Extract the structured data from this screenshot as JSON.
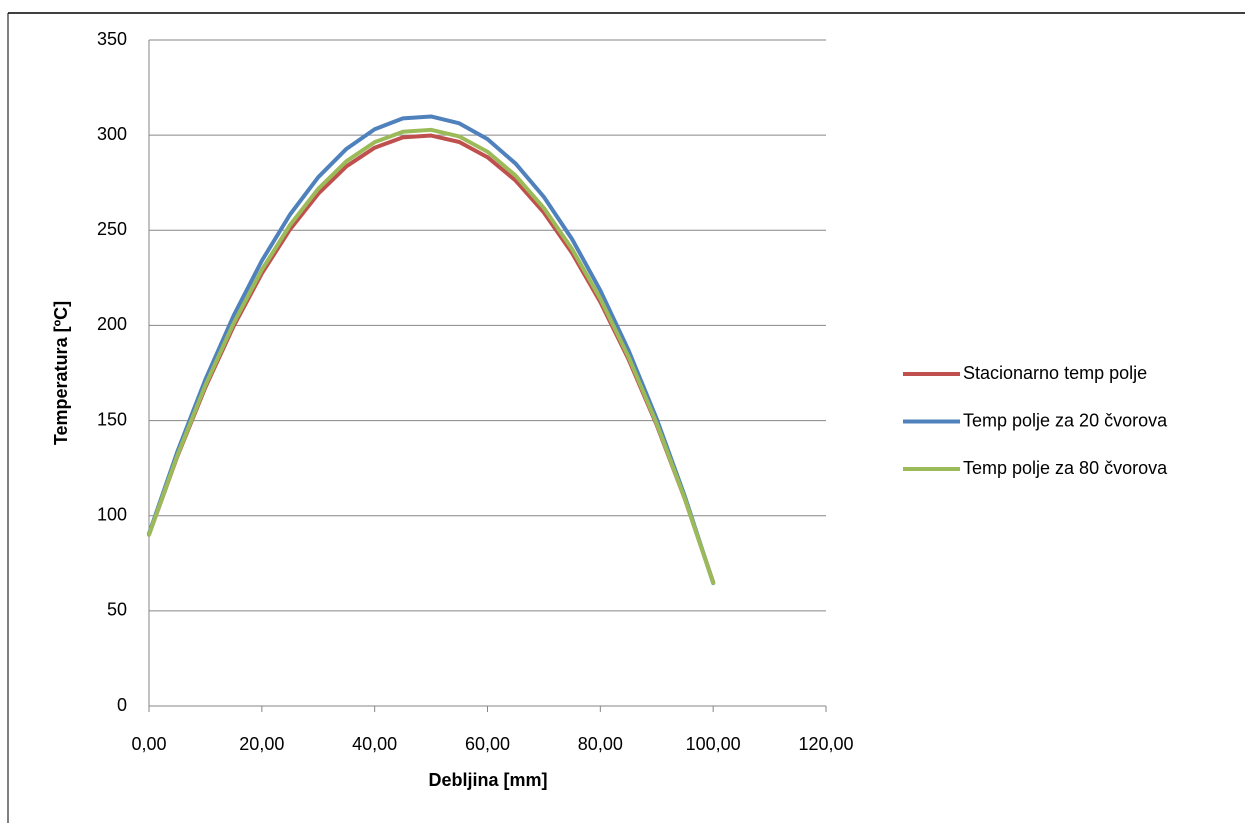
{
  "chart_data": {
    "type": "line",
    "xlabel": "Debljina [mm]",
    "ylabel": "Temperatura [ºC]",
    "x": [
      0,
      5,
      10,
      15,
      20,
      25,
      30,
      35,
      40,
      45,
      50,
      55,
      60,
      65,
      70,
      75,
      80,
      85,
      90,
      95,
      100
    ],
    "series": [
      {
        "name": "Stacionarno temp polje",
        "color": "#c0504d",
        "values": [
          90.0,
          131.0,
          167.5,
          199.6,
          227.3,
          250.5,
          269.2,
          283.6,
          293.4,
          298.8,
          299.8,
          296.4,
          288.4,
          276.1,
          259.3,
          238.0,
          212.3,
          182.2,
          147.6,
          108.6,
          65.1
        ]
      },
      {
        "name": "Temp polje za 20 čvorova",
        "color": "#4f81bd",
        "values": [
          90.6,
          133.4,
          171.6,
          205.1,
          234.0,
          258.3,
          277.9,
          292.8,
          303.1,
          308.8,
          309.8,
          306.2,
          297.9,
          285.0,
          267.5,
          245.3,
          218.4,
          186.9,
          150.8,
          110.0,
          64.6
        ]
      },
      {
        "name": "Temp polje za 80 čvorova",
        "color": "#9bbb59",
        "values": [
          90.0,
          131.5,
          168.6,
          201.2,
          229.2,
          252.8,
          271.8,
          286.3,
          296.3,
          301.8,
          302.8,
          299.3,
          291.3,
          278.7,
          261.7,
          240.1,
          214.1,
          183.5,
          148.4,
          108.8,
          64.7
        ]
      }
    ],
    "xlim": [
      0,
      120
    ],
    "xticks": [
      {
        "value": 0,
        "label": "0,00"
      },
      {
        "value": 20,
        "label": "20,00"
      },
      {
        "value": 40,
        "label": "40,00"
      },
      {
        "value": 60,
        "label": "60,00"
      },
      {
        "value": 80,
        "label": "80,00"
      },
      {
        "value": 100,
        "label": "100,00"
      },
      {
        "value": 120,
        "label": "120,00"
      }
    ],
    "ylim": [
      0,
      350
    ],
    "yticks": [
      0,
      50,
      100,
      150,
      200,
      250,
      300,
      350
    ],
    "grid": true,
    "legend": "right"
  }
}
